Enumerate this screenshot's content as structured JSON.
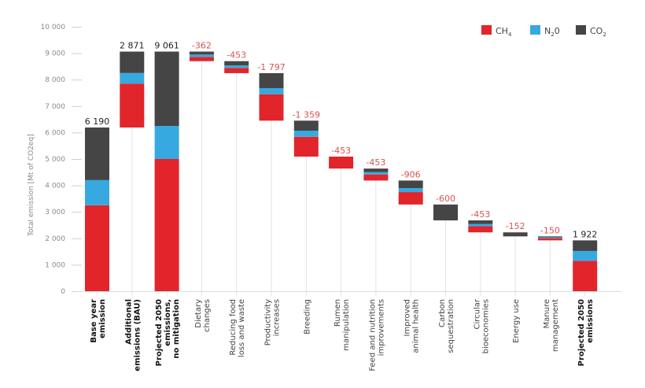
{
  "chart_data": {
    "type": "bar",
    "subtype": "stacked-waterfall",
    "title": "",
    "xlabel": "",
    "ylabel": "Total emission [Mt of CO2eq]",
    "ylim": [
      0,
      10000
    ],
    "yticks": [
      0,
      1000,
      2000,
      3000,
      4000,
      5000,
      6000,
      7000,
      8000,
      9000,
      10000
    ],
    "ytick_labels": [
      "0",
      "1 000",
      "2 000",
      "3 000",
      "4 000",
      "5 000",
      "6 000",
      "7 000",
      "8 000",
      "9 000",
      "10 000"
    ],
    "grid": false,
    "legend": {
      "placement": "top-right",
      "entries": [
        {
          "name": "CH4",
          "label_main": "CH",
          "label_sub": "4",
          "label_tail": "",
          "color": "#e2242b"
        },
        {
          "name": "N2O",
          "label_main": "N",
          "label_sub": "2",
          "label_tail": "0",
          "color": "#36a9e1"
        },
        {
          "name": "CO2",
          "label_main": "CO",
          "label_sub": "2",
          "label_tail": "",
          "color": "#454545"
        }
      ]
    },
    "colors": {
      "CH4": "#e2242b",
      "N2O": "#36a9e1",
      "CO2": "#454545",
      "total_label": "#222222",
      "reduction_label": "#d9534f",
      "connector": "#e3e3e3"
    },
    "bars": [
      {
        "category": [
          "Base year",
          "emission"
        ],
        "bold": true,
        "kind": "total",
        "label": "6 190",
        "bottom": 0,
        "segments": {
          "CH4": 3250,
          "N2O": 950,
          "CO2": 1990
        }
      },
      {
        "category": [
          "Additional",
          "emissions (BAU)"
        ],
        "bold": true,
        "kind": "increase",
        "label": "2 871",
        "bottom": 6190,
        "segments": {
          "CH4": 1660,
          "N2O": 400,
          "CO2": 811
        }
      },
      {
        "category": [
          "Projected 2050",
          "emissions,",
          "no mitigation"
        ],
        "bold": true,
        "kind": "total",
        "label": "9 061",
        "bottom": 0,
        "segments": {
          "CH4": 5000,
          "N2O": 1250,
          "CO2": 2811
        }
      },
      {
        "category": [
          "Dietary",
          "changes"
        ],
        "bold": false,
        "kind": "reduction",
        "label": "-362",
        "bottom": 8699,
        "segments": {
          "CH4": 160,
          "N2O": 90,
          "CO2": 112
        }
      },
      {
        "category": [
          "Reducing food",
          "loss and waste"
        ],
        "bold": false,
        "kind": "reduction",
        "label": "-453",
        "bottom": 8246,
        "segments": {
          "CH4": 200,
          "N2O": 90,
          "CO2": 163
        }
      },
      {
        "category": [
          "Productivity",
          "increases"
        ],
        "bold": false,
        "kind": "reduction",
        "label": "-1 797",
        "bottom": 6449,
        "segments": {
          "CH4": 1000,
          "N2O": 230,
          "CO2": 567
        }
      },
      {
        "category": [
          "Breeding"
        ],
        "bold": false,
        "kind": "reduction",
        "label": "-1 359",
        "bottom": 5090,
        "segments": {
          "CH4": 750,
          "N2O": 230,
          "CO2": 379
        }
      },
      {
        "category": [
          "Rumen",
          "manipulation"
        ],
        "bold": false,
        "kind": "reduction",
        "label": "-453",
        "bottom": 4637,
        "segments": {
          "CH4": 453,
          "N2O": 0,
          "CO2": 0
        }
      },
      {
        "category": [
          "Feed and nutrition",
          "improvements"
        ],
        "bold": false,
        "kind": "reduction",
        "label": "-453",
        "bottom": 4184,
        "segments": {
          "CH4": 230,
          "N2O": 90,
          "CO2": 133
        }
      },
      {
        "category": [
          "Improved",
          "animal health"
        ],
        "bold": false,
        "kind": "reduction",
        "label": "-906",
        "bottom": 3278,
        "segments": {
          "CH4": 470,
          "N2O": 150,
          "CO2": 286
        }
      },
      {
        "category": [
          "Carbon",
          "sequestration"
        ],
        "bold": false,
        "kind": "reduction",
        "label": "-600",
        "bottom": 2678,
        "segments": {
          "CH4": 0,
          "N2O": 0,
          "CO2": 600
        }
      },
      {
        "category": [
          "Circular",
          "bioeconomies"
        ],
        "bold": false,
        "kind": "reduction",
        "label": "-453",
        "bottom": 2225,
        "segments": {
          "CH4": 230,
          "N2O": 90,
          "CO2": 133
        }
      },
      {
        "category": [
          "Energy use"
        ],
        "bold": false,
        "kind": "reduction",
        "label": "-152",
        "bottom": 2073,
        "segments": {
          "CH4": 0,
          "N2O": 0,
          "CO2": 152
        }
      },
      {
        "category": [
          "Manure",
          "management"
        ],
        "bold": false,
        "kind": "reduction",
        "label": "-150",
        "bottom": 1923,
        "segments": {
          "CH4": 80,
          "N2O": 35,
          "CO2": 35
        }
      },
      {
        "category": [
          "Projected 2050",
          "emissions"
        ],
        "bold": true,
        "kind": "total",
        "label": "1 922",
        "bottom": 0,
        "segments": {
          "CH4": 1150,
          "N2O": 370,
          "CO2": 402
        }
      }
    ]
  }
}
